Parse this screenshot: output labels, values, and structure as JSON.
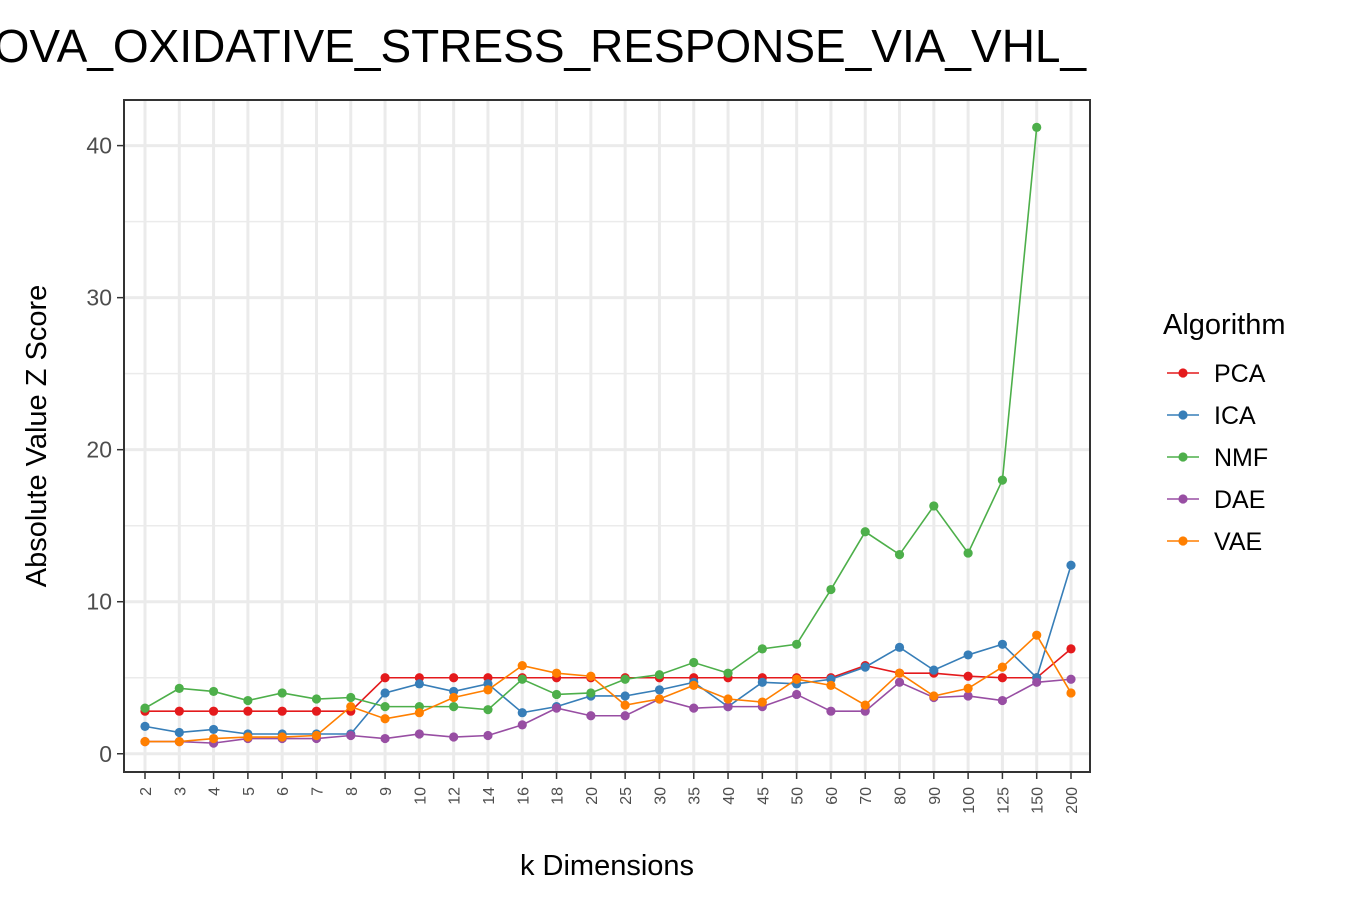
{
  "chart_data": {
    "type": "line",
    "title": "LOVA_OXIDATIVE_STRESS_RESPONSE_VIA_VHL_",
    "xlabel": "k Dimensions",
    "ylabel": "Absolute Value Z Score",
    "categories": [
      "2",
      "3",
      "4",
      "5",
      "6",
      "7",
      "8",
      "9",
      "10",
      "12",
      "14",
      "16",
      "18",
      "20",
      "25",
      "30",
      "35",
      "40",
      "45",
      "50",
      "60",
      "70",
      "80",
      "90",
      "100",
      "125",
      "150",
      "200"
    ],
    "ylim": [
      -1.2,
      43
    ],
    "yticks": [
      0,
      10,
      20,
      30,
      40
    ],
    "grid": true,
    "legend": {
      "title": "Algorithm",
      "position": "right"
    },
    "series": [
      {
        "name": "PCA",
        "color": "#E41A1C",
        "values": [
          2.8,
          2.8,
          2.8,
          2.8,
          2.8,
          2.8,
          2.8,
          5.0,
          5.0,
          5.0,
          5.0,
          5.0,
          5.0,
          5.0,
          5.0,
          5.0,
          5.0,
          5.0,
          5.0,
          5.0,
          5.0,
          5.8,
          5.3,
          5.3,
          5.1,
          5.0,
          5.0,
          6.9
        ]
      },
      {
        "name": "ICA",
        "color": "#377EB8",
        "values": [
          1.8,
          1.4,
          1.6,
          1.3,
          1.3,
          1.3,
          1.3,
          4.0,
          4.6,
          4.1,
          4.6,
          2.7,
          3.1,
          3.8,
          3.8,
          4.2,
          4.7,
          3.1,
          4.7,
          4.6,
          4.9,
          5.7,
          7.0,
          5.5,
          6.5,
          7.2,
          5.0,
          12.4
        ]
      },
      {
        "name": "NMF",
        "color": "#4DAF4A",
        "values": [
          3.0,
          4.3,
          4.1,
          3.5,
          4.0,
          3.6,
          3.7,
          3.1,
          3.1,
          3.1,
          2.9,
          4.9,
          3.9,
          4.0,
          4.9,
          5.2,
          6.0,
          5.3,
          6.9,
          7.2,
          10.8,
          14.6,
          13.1,
          16.3,
          13.2,
          18.0,
          41.2,
          null
        ]
      },
      {
        "name": "DAE",
        "color": "#984EA3",
        "values": [
          0.8,
          0.8,
          0.7,
          1.0,
          1.0,
          1.0,
          1.2,
          1.0,
          1.3,
          1.1,
          1.2,
          1.9,
          3.0,
          2.5,
          2.5,
          3.6,
          3.0,
          3.1,
          3.1,
          3.9,
          2.8,
          2.8,
          4.7,
          3.7,
          3.8,
          3.5,
          4.7,
          4.9
        ]
      },
      {
        "name": "VAE",
        "color": "#FF7F00",
        "values": [
          0.8,
          0.8,
          1.0,
          1.1,
          1.1,
          1.2,
          3.1,
          2.3,
          2.7,
          3.7,
          4.2,
          5.8,
          5.3,
          5.1,
          3.2,
          3.6,
          4.5,
          3.6,
          3.4,
          4.9,
          4.5,
          3.2,
          5.3,
          3.8,
          4.3,
          5.7,
          7.8,
          4.0
        ]
      }
    ]
  }
}
